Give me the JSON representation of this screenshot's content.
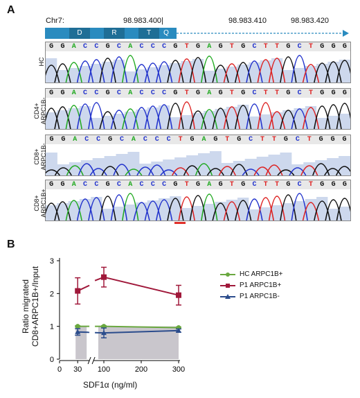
{
  "panel_a": {
    "letter": "A",
    "chrom_label": "Chr7:",
    "coord_1": "98.983.400|",
    "coord_2": "98.983.410",
    "coord_3": "98.983.420",
    "protein_letters": [
      "D",
      "R",
      "T",
      "Q"
    ],
    "colors": {
      "A": "#22aa22",
      "C": "#2233cc",
      "G": "#111111",
      "T": "#dd2222",
      "track_fill": "#b8c7e6",
      "protein": "#2a8bbf",
      "protein_dark": "#1f6e96"
    },
    "tracks": [
      {
        "label": "HC",
        "sequence": "GGACCGCACCCGTGAGTGCTTGCTGGG"
      },
      {
        "label_line1": "CD4+",
        "label_line2": "ARPC1B-",
        "sequence": "GGACCGCACCCGTGAGTGCTTGCTGGG"
      },
      {
        "label_line1": "CD8+",
        "label_line2": "ARPC1B-",
        "sequence": "GGACCGCACCCTGAGTGCTTGCTGGG"
      },
      {
        "label_line1": "CD8+",
        "label_line2": "ARPC1B+",
        "sequence": "GGACCGCACCCGTGAGTGCTTGCTGGG"
      }
    ]
  },
  "panel_b": {
    "letter": "B",
    "ylabel_line1": "Ratio migrated",
    "ylabel_line2": "CD8+ARPC1B+/Input",
    "xlabel": "SDF1α (ng/ml)"
  },
  "chart_data": {
    "type": "line",
    "x": [
      30,
      100,
      300
    ],
    "xticks": [
      "0",
      "30",
      "100",
      "200",
      "300"
    ],
    "yticks": [
      "0",
      "1",
      "2",
      "3"
    ],
    "ylim": [
      0,
      3
    ],
    "series": [
      {
        "name": "HC ARPC1B+",
        "color": "#6aa83f",
        "marker": "circle",
        "values": [
          1.0,
          1.0,
          0.96
        ],
        "err": [
          0.02,
          0.02,
          0.02
        ]
      },
      {
        "name": "P1 ARPC1B+",
        "color": "#a0183a",
        "marker": "square",
        "values": [
          2.08,
          2.5,
          1.95
        ],
        "err": [
          0.4,
          0.3,
          0.3
        ]
      },
      {
        "name": "P1 ARPC1B-",
        "color": "#2b4c8c",
        "marker": "triangle",
        "values": [
          0.83,
          0.8,
          0.87
        ],
        "err": [
          0.1,
          0.15,
          0.05
        ]
      }
    ]
  }
}
